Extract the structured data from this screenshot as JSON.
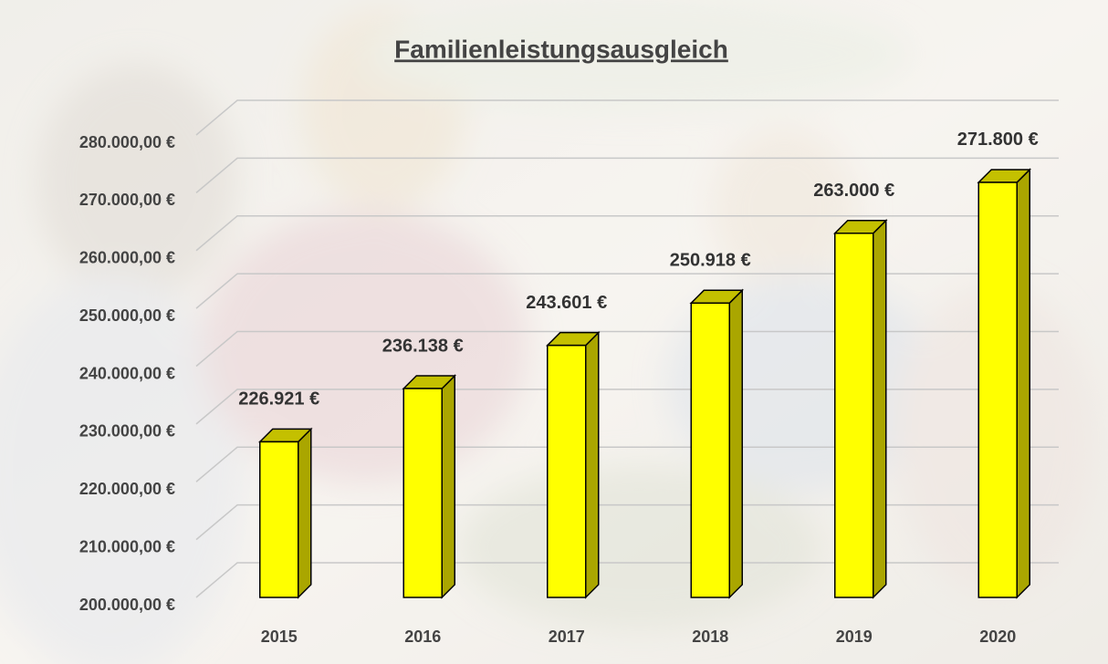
{
  "chart_data": {
    "type": "bar3d",
    "title": "Familienleistungsausgleich",
    "categories": [
      "2015",
      "2016",
      "2017",
      "2018",
      "2019",
      "2020"
    ],
    "values": [
      226921,
      236138,
      243601,
      250918,
      263000,
      271800
    ],
    "value_labels": [
      "226.921 €",
      "236.138 €",
      "243.601 €",
      "250.918 €",
      "263.000 €",
      "271.800 €"
    ],
    "color": "#ffff00",
    "ylim": [
      200000,
      280000
    ],
    "yticks": [
      {
        "value": 200000,
        "label": "200.000,00 €"
      },
      {
        "value": 210000,
        "label": "210.000,00 €"
      },
      {
        "value": 220000,
        "label": "220.000,00 €"
      },
      {
        "value": 230000,
        "label": "230.000,00 €"
      },
      {
        "value": 240000,
        "label": "240.000,00 €"
      },
      {
        "value": 250000,
        "label": "250.000,00 €"
      },
      {
        "value": 260000,
        "label": "260.000,00 €"
      },
      {
        "value": 270000,
        "label": "270.000,00 €"
      },
      {
        "value": 280000,
        "label": "280.000,00 €"
      }
    ],
    "grid": true
  }
}
